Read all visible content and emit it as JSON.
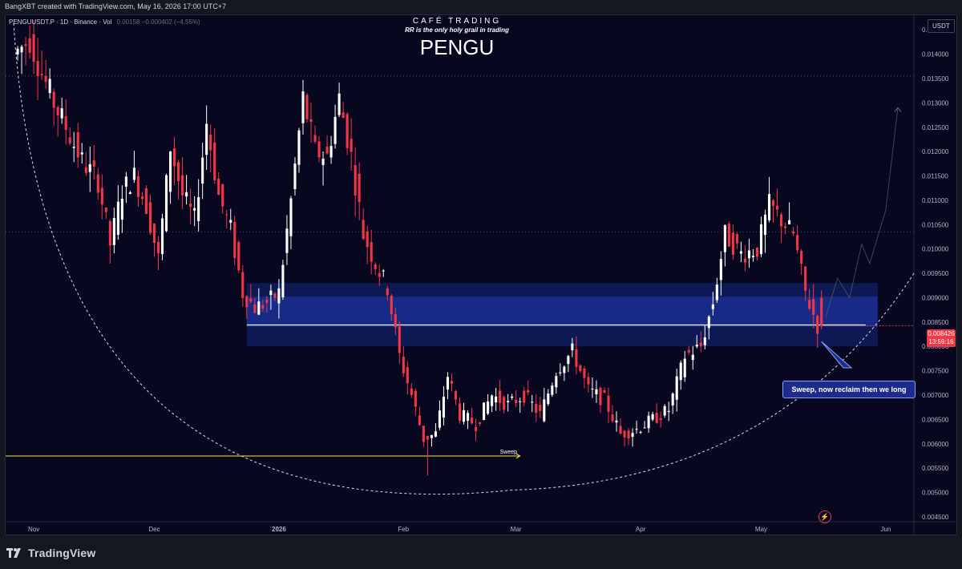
{
  "header": {
    "attribution": "BangXBT created with TradingView.com, May 16, 2026 17:00 UTC+7"
  },
  "overlay": {
    "brand_line": "CAFÉ TRADING",
    "tagline": "RR is the only holy grail in trading",
    "coin_title": "PENGU"
  },
  "legend": {
    "symbol": "PENGUUSDT.P · 1D · Binance · Vol",
    "values": "0.00158  −0.000402 (−4.55%)"
  },
  "price_axis": {
    "unit": "USDT",
    "ticks": [
      "0.014500",
      "0.014000",
      "0.013500",
      "0.013000",
      "0.012500",
      "0.012000",
      "0.011500",
      "0.011000",
      "0.010500",
      "0.010000",
      "0.009500",
      "0.009000",
      "0.008500",
      "0.008000",
      "0.007500",
      "0.007000",
      "0.006500",
      "0.006000",
      "0.005500",
      "0.005000",
      "0.004500"
    ]
  },
  "time_axis": {
    "labels": [
      "Nov",
      "Dec",
      "2026",
      "Feb",
      "Mar",
      "Apr",
      "May",
      "Jun"
    ]
  },
  "last_price": {
    "value": "0.008426",
    "countdown": "13:59:16",
    "color": "#f23645"
  },
  "annotations": {
    "sweep_label": "Sweep",
    "callout": "Sweep, now reclaim then we long"
  },
  "colors": {
    "background": "#070720",
    "up_candle": "#ffffff",
    "down_candle": "#f23645",
    "zone": "#1e3bb8",
    "sweep_line": "#f5e642",
    "callout_bg": "#1e2a8c"
  },
  "footer": {
    "brand": "TradingView"
  },
  "chart_data": {
    "type": "candlestick",
    "symbol": "PENGUUSDT.P",
    "timeframe": "1D",
    "ylim": [
      0.0044,
      0.0148
    ],
    "x_range": [
      "2025-10-25",
      "2026-06-08"
    ],
    "demand_zone": {
      "low": 0.008,
      "high": 0.0093
    },
    "key_level": 0.00844,
    "horizontal_levels": [
      0.01355,
      0.01035
    ],
    "sweep_level": 0.00575,
    "rounding_bottom_low": 0.00505,
    "last_close": 0.008426,
    "ohlc_waypoints": [
      {
        "date": "2025-10-28",
        "close": 0.014
      },
      {
        "date": "2025-11-01",
        "close": 0.0143
      },
      {
        "date": "2025-11-04",
        "close": 0.0136
      },
      {
        "date": "2025-11-07",
        "close": 0.013
      },
      {
        "date": "2025-11-10",
        "close": 0.0125
      },
      {
        "date": "2025-11-14",
        "close": 0.0118
      },
      {
        "date": "2025-11-18",
        "close": 0.0114
      },
      {
        "date": "2025-11-21",
        "close": 0.0101
      },
      {
        "date": "2025-11-24",
        "close": 0.0112
      },
      {
        "date": "2025-11-27",
        "close": 0.0115
      },
      {
        "date": "2025-11-30",
        "close": 0.0109
      },
      {
        "date": "2025-12-03",
        "close": 0.0098
      },
      {
        "date": "2025-12-06",
        "close": 0.0121
      },
      {
        "date": "2025-12-09",
        "close": 0.0111
      },
      {
        "date": "2025-12-12",
        "close": 0.0106
      },
      {
        "date": "2025-12-15",
        "close": 0.0126
      },
      {
        "date": "2025-12-18",
        "close": 0.0111
      },
      {
        "date": "2025-12-21",
        "close": 0.0104
      },
      {
        "date": "2025-12-24",
        "close": 0.0091
      },
      {
        "date": "2025-12-27",
        "close": 0.0088
      },
      {
        "date": "2025-12-30",
        "close": 0.0089
      },
      {
        "date": "2026-01-02",
        "close": 0.0091
      },
      {
        "date": "2026-01-05",
        "close": 0.011
      },
      {
        "date": "2026-01-08",
        "close": 0.0131
      },
      {
        "date": "2026-01-11",
        "close": 0.012
      },
      {
        "date": "2026-01-14",
        "close": 0.0119
      },
      {
        "date": "2026-01-17",
        "close": 0.0131
      },
      {
        "date": "2026-01-20",
        "close": 0.0119
      },
      {
        "date": "2026-01-23",
        "close": 0.0103
      },
      {
        "date": "2026-01-26",
        "close": 0.0097
      },
      {
        "date": "2026-01-29",
        "close": 0.0092
      },
      {
        "date": "2026-02-01",
        "close": 0.0078
      },
      {
        "date": "2026-02-04",
        "close": 0.007
      },
      {
        "date": "2026-02-07",
        "close": 0.0061
      },
      {
        "date": "2026-02-10",
        "close": 0.0062
      },
      {
        "date": "2026-02-13",
        "close": 0.0074
      },
      {
        "date": "2026-02-16",
        "close": 0.0066
      },
      {
        "date": "2026-02-20",
        "close": 0.0064
      },
      {
        "date": "2026-02-24",
        "close": 0.007
      },
      {
        "date": "2026-02-28",
        "close": 0.0068
      },
      {
        "date": "2026-03-04",
        "close": 0.007
      },
      {
        "date": "2026-03-08",
        "close": 0.0066
      },
      {
        "date": "2026-03-12",
        "close": 0.0075
      },
      {
        "date": "2026-03-16",
        "close": 0.0079
      },
      {
        "date": "2026-03-20",
        "close": 0.0071
      },
      {
        "date": "2026-03-24",
        "close": 0.0069
      },
      {
        "date": "2026-03-28",
        "close": 0.0062
      },
      {
        "date": "2026-04-01",
        "close": 0.0063
      },
      {
        "date": "2026-04-05",
        "close": 0.0065
      },
      {
        "date": "2026-04-09",
        "close": 0.0067
      },
      {
        "date": "2026-04-13",
        "close": 0.0078
      },
      {
        "date": "2026-04-17",
        "close": 0.008
      },
      {
        "date": "2026-04-20",
        "close": 0.0089
      },
      {
        "date": "2026-04-23",
        "close": 0.0103
      },
      {
        "date": "2026-04-27",
        "close": 0.0099
      },
      {
        "date": "2026-05-01",
        "close": 0.01
      },
      {
        "date": "2026-05-04",
        "close": 0.0109
      },
      {
        "date": "2026-05-07",
        "close": 0.0106
      },
      {
        "date": "2026-05-10",
        "close": 0.0103
      },
      {
        "date": "2026-05-13",
        "close": 0.0091
      },
      {
        "date": "2026-05-16",
        "close": 0.008426
      }
    ],
    "projection": [
      {
        "date": "2026-05-17",
        "close": 0.0086
      },
      {
        "date": "2026-05-20",
        "close": 0.0094
      },
      {
        "date": "2026-05-23",
        "close": 0.009
      },
      {
        "date": "2026-05-26",
        "close": 0.0101
      },
      {
        "date": "2026-05-28",
        "close": 0.0097
      },
      {
        "date": "2026-06-01",
        "close": 0.0108
      },
      {
        "date": "2026-06-04",
        "close": 0.0129
      }
    ]
  }
}
